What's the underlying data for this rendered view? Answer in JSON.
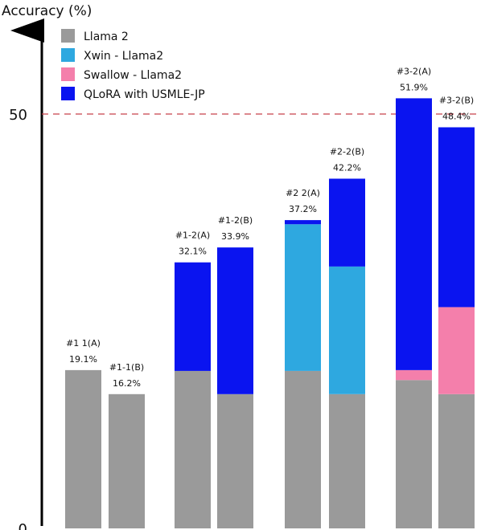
{
  "chart_data": {
    "type": "bar",
    "stacked": true,
    "ylabel": "Accuracy (%)",
    "ylim": [
      0,
      60
    ],
    "yticks": [
      0,
      50
    ],
    "reference_line": {
      "value": 50,
      "style": "dashed",
      "color": "#c8404a"
    },
    "legend": {
      "placement": "top-left",
      "entries": [
        {
          "name": "Llama 2",
          "color": "#9a9a9a"
        },
        {
          "name": "Xwin - Llama2",
          "color": "#2ea8e0"
        },
        {
          "name": "Swallow - Llama2",
          "color": "#f47fab"
        },
        {
          "name": "QLoRA with USMLE-JP",
          "color": "#0a14f0"
        }
      ]
    },
    "categories": [
      "#1-1(A)",
      "#1-1(B)",
      "#1-2(A)",
      "#1-2(B)",
      "#2-2(A)",
      "#2-2(B)",
      "#3-2(A)",
      "#3-2(B)"
    ],
    "series": [
      {
        "name": "Llama 2",
        "values": [
          19.1,
          16.2,
          19.0,
          16.2,
          19.0,
          16.2,
          17.9,
          16.2
        ]
      },
      {
        "name": "Xwin - Llama2",
        "values": [
          0,
          0,
          0,
          0,
          17.7,
          15.4,
          0,
          0
        ]
      },
      {
        "name": "Swallow - Llama2",
        "values": [
          0,
          0,
          0,
          0,
          0,
          0,
          1.2,
          10.5
        ]
      },
      {
        "name": "QLoRA with USMLE-JP",
        "values": [
          0,
          0,
          13.1,
          17.7,
          0.5,
          10.6,
          32.8,
          21.7
        ]
      }
    ],
    "totals": [
      19.1,
      16.2,
      32.1,
      33.9,
      37.2,
      42.2,
      51.9,
      48.4
    ],
    "data_labels": [
      {
        "name": "#1 1(A)",
        "value": "19.1%"
      },
      {
        "name": "#1-1(B)",
        "value": "16.2%"
      },
      {
        "name": "#1-2(A)",
        "value": "32.1%"
      },
      {
        "name": "#1-2(B)",
        "value": "33.9%"
      },
      {
        "name": "#2 2(A)",
        "value": "37.2%"
      },
      {
        "name": "#2-2(B)",
        "value": "42.2%"
      },
      {
        "name": "#3-2(A)",
        "value": "51.9%"
      },
      {
        "name": "#3-2(B)",
        "value": "48.4%"
      }
    ]
  }
}
